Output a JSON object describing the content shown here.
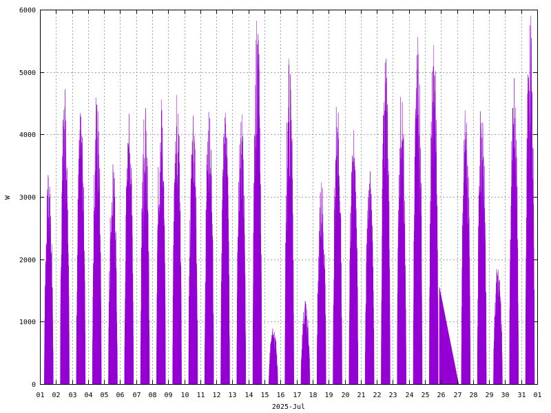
{
  "chart_data": {
    "type": "area",
    "title": "",
    "xlabel": "2025-Jul",
    "ylabel": "W",
    "ylim": [
      0,
      6000
    ],
    "yticks": [
      0,
      1000,
      2000,
      3000,
      4000,
      5000,
      6000
    ],
    "xticks": [
      "01",
      "02",
      "03",
      "04",
      "05",
      "06",
      "07",
      "08",
      "09",
      "10",
      "11",
      "12",
      "13",
      "14",
      "15",
      "16",
      "17",
      "18",
      "19",
      "20",
      "21",
      "22",
      "23",
      "24",
      "25",
      "26",
      "27",
      "28",
      "29",
      "30",
      "31",
      "01"
    ],
    "grid": true,
    "legend": "none",
    "color": "#9400d3",
    "series": [
      {
        "daily_peaks": [
          {
            "day": 1,
            "peak_w": 3350
          },
          {
            "day": 2,
            "peak_w": 4720
          },
          {
            "day": 3,
            "peak_w": 4340
          },
          {
            "day": 4,
            "peak_w": 4590
          },
          {
            "day": 5,
            "peak_w": 3520
          },
          {
            "day": 6,
            "peak_w": 4330
          },
          {
            "day": 7,
            "peak_w": 4420
          },
          {
            "day": 8,
            "peak_w": 4560
          },
          {
            "day": 9,
            "peak_w": 4630
          },
          {
            "day": 10,
            "peak_w": 4300
          },
          {
            "day": 11,
            "peak_w": 4360
          },
          {
            "day": 12,
            "peak_w": 4350
          },
          {
            "day": 13,
            "peak_w": 4320
          },
          {
            "day": 14,
            "peak_w": 5820
          },
          {
            "day": 15,
            "peak_w": 890
          },
          {
            "day": 16,
            "peak_w": 5210
          },
          {
            "day": 17,
            "peak_w": 1330
          },
          {
            "day": 18,
            "peak_w": 3230
          },
          {
            "day": 19,
            "peak_w": 4440
          },
          {
            "day": 20,
            "peak_w": 4070
          },
          {
            "day": 21,
            "peak_w": 3410
          },
          {
            "day": 22,
            "peak_w": 5210
          },
          {
            "day": 23,
            "peak_w": 4600
          },
          {
            "day": 24,
            "peak_w": 5560
          },
          {
            "day": 25,
            "peak_w": 5430
          },
          {
            "day": 27,
            "peak_w": 4390
          },
          {
            "day": 28,
            "peak_w": 4370
          },
          {
            "day": 29,
            "peak_w": 1840
          },
          {
            "day": 30,
            "peak_w": 4900
          },
          {
            "day": 31,
            "peak_w": 5900
          }
        ],
        "data_gap": {
          "from_day": 25.9,
          "to_day": 27.1,
          "from_w": 1550,
          "to_w": 0
        }
      }
    ]
  }
}
